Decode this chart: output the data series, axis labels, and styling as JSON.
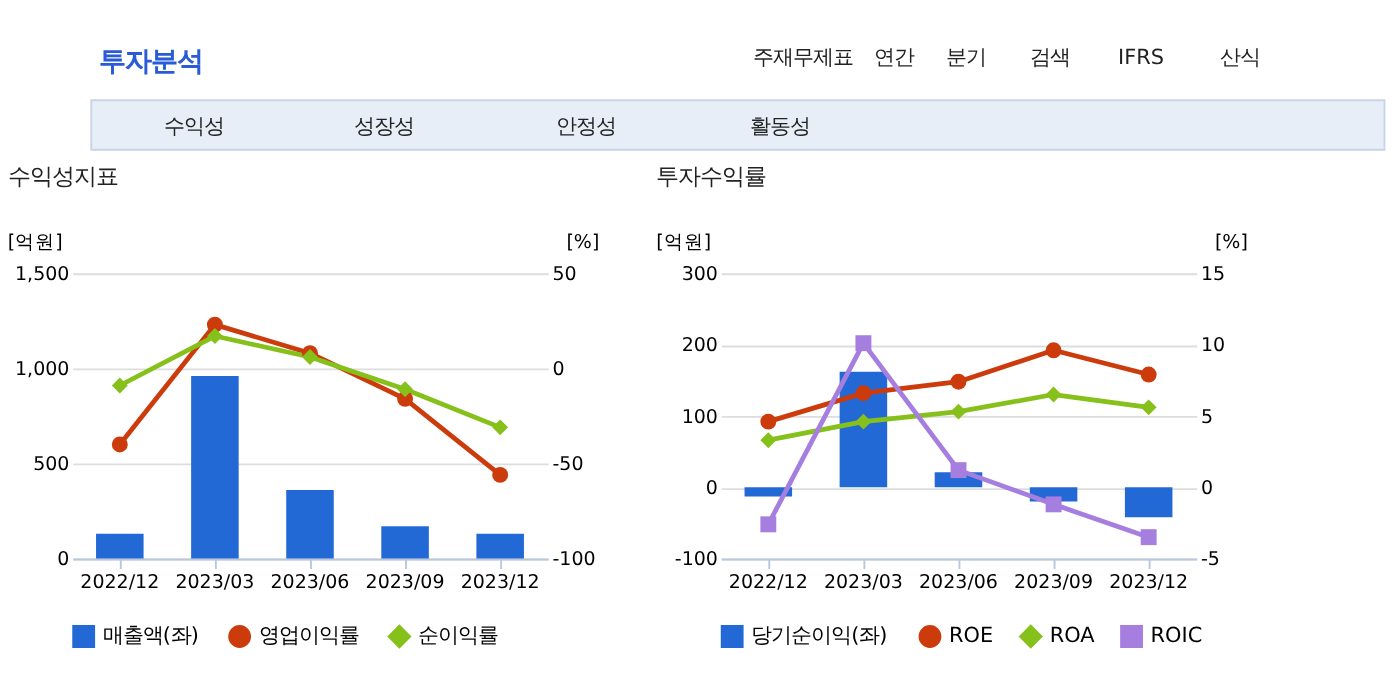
{
  "chart_data": [
    {
      "type": "other",
      "title": "투자분석",
      "annotations": [
        "주재무제표",
        "연간",
        "분기",
        "검색",
        "IFRS",
        "산식",
        "수익성",
        "성장성",
        "안정성",
        "활동성"
      ]
    },
    {
      "type": "bar",
      "title": "수익성지표",
      "ylabel": "[억원]",
      "y2label": "[%]",
      "categories": [
        "2022/12",
        "2023/03",
        "2023/06",
        "2023/09",
        "2023/12"
      ],
      "series": [
        {
          "name": "매출액(좌)",
          "color": "#2369d6",
          "values": [
            130,
            960,
            360,
            170,
            130
          ],
          "marker": "square"
        },
        {
          "name": "영업이익률",
          "type": "line",
          "axis": "y2",
          "color": "#cc3b0c",
          "values": [
            -40,
            23,
            8,
            -16,
            -56
          ],
          "marker": "circle"
        },
        {
          "name": "순이익률",
          "type": "line",
          "axis": "y2",
          "color": "#86c01b",
          "values": [
            -9,
            17,
            6,
            -11,
            -31
          ],
          "marker": "diamond"
        }
      ],
      "ylim": [
        0,
        1500
      ],
      "yticks": [
        0,
        500,
        {
          "value": 1000,
          "label": "1,000"
        },
        {
          "value": 1500,
          "label": "1,500"
        }
      ],
      "y2lim": [
        -100,
        50
      ],
      "y2ticks": [
        -100,
        -50,
        0,
        50
      ],
      "grid": "y",
      "legend": "bottom"
    },
    {
      "type": "bar",
      "title": "투자수익률",
      "ylabel": "[억원]",
      "y2label": "[%]",
      "categories": [
        "2022/12",
        "2023/03",
        "2023/06",
        "2023/09",
        "2023/12"
      ],
      "series": [
        {
          "name": "당기순이익(좌)",
          "color": "#2369d6",
          "values": [
            -13,
            162,
            21,
            -20,
            -42
          ],
          "marker": "square"
        },
        {
          "name": "ROE",
          "type": "line",
          "axis": "y2",
          "color": "#cc3b0c",
          "values": [
            4.6,
            6.6,
            7.4,
            9.6,
            7.9
          ],
          "marker": "circle"
        },
        {
          "name": "ROA",
          "type": "line",
          "axis": "y2",
          "color": "#86c01b",
          "values": [
            3.3,
            4.6,
            5.3,
            6.5,
            5.6
          ],
          "marker": "diamond"
        },
        {
          "name": "ROIC",
          "type": "line",
          "axis": "y2",
          "color": "#a57ee0",
          "values": [
            -2.6,
            10.1,
            1.2,
            -1.2,
            -3.5
          ],
          "marker": "square"
        }
      ],
      "ylim": [
        -100,
        300
      ],
      "yticks": [
        -100,
        0,
        100,
        200,
        300
      ],
      "y2lim": [
        -5,
        15
      ],
      "y2ticks": [
        -5,
        0,
        5,
        10,
        15
      ],
      "grid": "y",
      "legend": "bottom"
    }
  ]
}
